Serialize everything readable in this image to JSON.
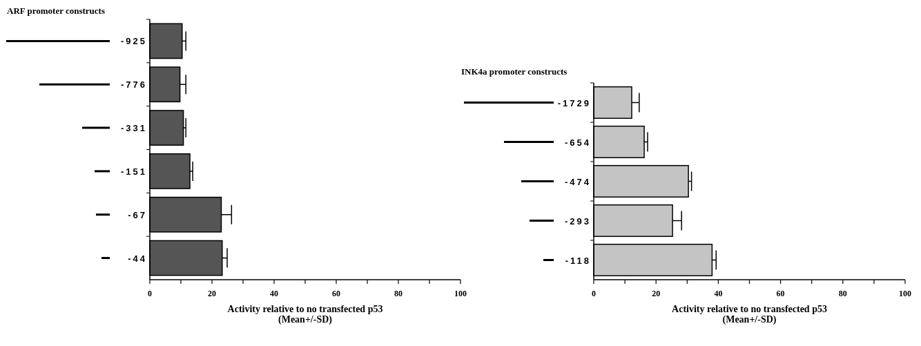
{
  "chart_data": [
    {
      "type": "bar",
      "orientation": "horizontal",
      "title": "ARF promoter constructs",
      "xlabel": "Activity relative to no transfected p53\n(Mean+/-SD)",
      "categories": [
        "-925",
        "-776",
        "-331",
        "-151",
        "-67",
        "-44"
      ],
      "values": [
        10.4,
        9.7,
        10.8,
        12.9,
        23.0,
        23.3
      ],
      "errors": [
        1.2,
        1.9,
        0.8,
        0.9,
        3.3,
        1.6
      ],
      "color": "#555555",
      "xlim": [
        0,
        100
      ],
      "xticks": [
        0,
        {
          "value": 10,
          "label": null
        },
        20,
        {
          "value": 30,
          "label": null
        },
        40,
        {
          "value": 50,
          "label": null
        },
        60,
        {
          "value": 70,
          "label": null
        },
        80,
        {
          "value": 90,
          "label": null
        },
        100
      ],
      "grid": false
    },
    {
      "type": "bar",
      "orientation": "horizontal",
      "title": "INK4a promoter constructs",
      "xlabel": "Activity relative to no transfected p53\n(Mean+/-SD)",
      "categories": [
        "-1729",
        "-654",
        "-474",
        "-293",
        "-118"
      ],
      "values": [
        12.2,
        16.2,
        30.4,
        25.3,
        38.0
      ],
      "errors": [
        2.4,
        1.1,
        1.0,
        2.9,
        1.3
      ],
      "color": "#c4c4c4",
      "xlim": [
        0,
        100
      ],
      "xticks": [
        0,
        {
          "value": 10,
          "label": null
        },
        20,
        {
          "value": 30,
          "label": null
        },
        40,
        {
          "value": 50,
          "label": null
        },
        60,
        {
          "value": 70,
          "label": null
        },
        80,
        {
          "value": 90,
          "label": null
        },
        100
      ],
      "grid": false
    }
  ]
}
